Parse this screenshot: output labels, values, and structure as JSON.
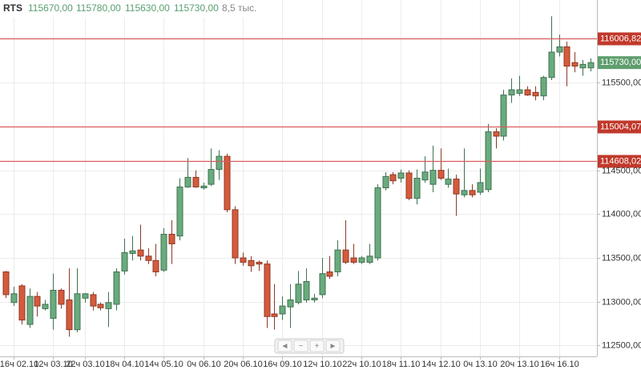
{
  "chart_data": {
    "type": "candlestick",
    "ticker": "RTS",
    "ohlc_labels": [
      "115670,00",
      "115780,00",
      "115630,00",
      "115730,00"
    ],
    "volume_label": "8,5 тыс.",
    "categories": [
      null,
      "16ч 02.10",
      null,
      null,
      null,
      null,
      "12ч 03.10",
      null,
      null,
      null,
      "22ч 03.10",
      null,
      null,
      null,
      null,
      "18ч 04.10",
      null,
      null,
      null,
      null,
      "14ч 05.10",
      null,
      null,
      null,
      null,
      "0ч 06.10",
      null,
      null,
      null,
      null,
      "20ч 06.10",
      null,
      null,
      null,
      null,
      "16ч 09.10",
      null,
      null,
      null,
      null,
      "12ч 10.10",
      null,
      null,
      null,
      null,
      "22ч 10.10",
      null,
      null,
      null,
      null,
      "18ч 11.10",
      null,
      null,
      null,
      null,
      "14ч 12.10",
      null,
      null,
      null,
      null,
      "0ч 13.10",
      null,
      null,
      null,
      null,
      "20ч 13.10",
      null,
      null,
      null,
      null,
      "16ч 16.10",
      null,
      null,
      null,
      null
    ],
    "open": [
      113340,
      112990,
      113180,
      112740,
      113060,
      112920,
      112810,
      113130,
      113020,
      112680,
      113040,
      113080,
      112970,
      112920,
      112970,
      113350,
      113550,
      113590,
      113520,
      113470,
      113360,
      113770,
      113750,
      114310,
      114420,
      114300,
      114340,
      114510,
      114660,
      114050,
      113500,
      113470,
      113450,
      113430,
      112860,
      112860,
      112940,
      112990,
      113020,
      113020,
      113080,
      113340,
      113340,
      113590,
      113500,
      113450,
      113450,
      113500,
      114300,
      114450,
      114410,
      114470,
      114180,
      114390,
      114340,
      114500,
      114340,
      114400,
      114220,
      114270,
      114250,
      114280,
      114940,
      114890,
      115360,
      115380,
      115420,
      115390,
      115350,
      115560,
      115850,
      115910,
      115730,
      115670,
      115670
    ],
    "high": [
      113350,
      113170,
      113200,
      113150,
      113110,
      113020,
      113320,
      113150,
      113380,
      113380,
      113100,
      113110,
      112990,
      113110,
      113380,
      113720,
      113750,
      113880,
      113610,
      113660,
      113840,
      113930,
      114410,
      114640,
      114500,
      114360,
      114750,
      114730,
      114690,
      114090,
      113560,
      113520,
      113470,
      113470,
      113200,
      113060,
      113200,
      113350,
      113380,
      113090,
      113500,
      113520,
      113700,
      113930,
      113660,
      113520,
      113660,
      114340,
      114480,
      114480,
      114510,
      114500,
      114510,
      114660,
      114780,
      114750,
      114520,
      114450,
      114750,
      114340,
      114520,
      115030,
      114980,
      115420,
      115550,
      115580,
      115460,
      115460,
      115580,
      116260,
      116050,
      115970,
      115850,
      115760,
      115780
    ],
    "low": [
      113040,
      112950,
      112740,
      112700,
      112830,
      112900,
      112680,
      112920,
      112600,
      112650,
      112990,
      112900,
      112900,
      112710,
      112900,
      113310,
      113470,
      113470,
      113430,
      113290,
      113340,
      113430,
      113700,
      114300,
      114300,
      114280,
      114320,
      114390,
      114020,
      113430,
      113410,
      113340,
      113350,
      112700,
      112680,
      112790,
      112700,
      112970,
      112990,
      112990,
      113040,
      113260,
      113290,
      113430,
      113430,
      113430,
      113430,
      113470,
      114270,
      114340,
      114360,
      114160,
      114110,
      114360,
      114250,
      114390,
      114300,
      113980,
      114190,
      114190,
      114220,
      114250,
      114750,
      114840,
      115270,
      115350,
      115350,
      115300,
      115300,
      115530,
      115800,
      115460,
      115620,
      115580,
      115630
    ],
    "close": [
      113080,
      113090,
      112790,
      113060,
      112950,
      112970,
      113130,
      112970,
      112680,
      113090,
      113090,
      112950,
      112930,
      112990,
      113340,
      113560,
      113580,
      113520,
      113470,
      113340,
      113770,
      113660,
      114310,
      114420,
      114310,
      114320,
      114510,
      114660,
      114050,
      113500,
      113450,
      113410,
      113430,
      112830,
      112830,
      112950,
      113020,
      113200,
      113230,
      113040,
      113320,
      113290,
      113590,
      113450,
      113450,
      113500,
      113520,
      114300,
      114430,
      114380,
      114470,
      114180,
      114410,
      114480,
      114500,
      114410,
      114400,
      114230,
      114270,
      114220,
      114360,
      114940,
      114890,
      115360,
      115420,
      115420,
      115360,
      115350,
      115560,
      115850,
      115910,
      115690,
      115690,
      115710,
      115730
    ],
    "up_color": "#6aab7e",
    "down_color": "#d65a3c",
    "levels": [
      116006.82,
      115004.07,
      114608.02
    ],
    "level_labels": [
      "116006,82",
      "115004,07",
      "114608,02"
    ],
    "level_color": "#d85c5c",
    "last_price_label": "115730,00",
    "ylim": [
      112375,
      116445
    ],
    "yticks": [
      {
        "value": 112500,
        "label": "112500,00"
      },
      {
        "value": 113000,
        "label": "113000,00"
      },
      {
        "value": 113500,
        "label": "113500,00"
      },
      {
        "value": 114000,
        "label": "114000,00"
      },
      {
        "value": 114500,
        "label": "114500,00"
      },
      {
        "value": 115500,
        "label": "115500,00"
      }
    ],
    "grid": true,
    "nav_buttons": [
      "◄",
      "−",
      "+",
      "►"
    ]
  }
}
